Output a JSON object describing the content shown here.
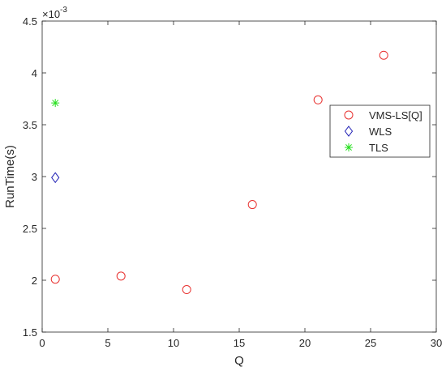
{
  "chart_data": {
    "type": "scatter",
    "title": "",
    "xlabel": "Q",
    "ylabel": "RunTime(s)",
    "xlim": [
      0,
      30
    ],
    "ylim": [
      1.5,
      4.5
    ],
    "x_ticks": [
      0,
      5,
      10,
      15,
      20,
      25,
      30
    ],
    "x_tick_labels": [
      "0",
      "5",
      "10",
      "15",
      "20",
      "25",
      "30"
    ],
    "y_ticks": [
      1.5,
      2,
      2.5,
      3,
      3.5,
      4,
      4.5
    ],
    "y_tick_labels": [
      "1.5",
      "2",
      "2.5",
      "3",
      "3.5",
      "4",
      "4.5"
    ],
    "y_exponent_base": "×10",
    "y_exponent_power": "-3",
    "grid": false,
    "legend_position": "right",
    "series": [
      {
        "name": "VMS-LS[Q]",
        "marker": "circle",
        "color": "#e8312f",
        "x": [
          1,
          6,
          11,
          16,
          21,
          26
        ],
        "y": [
          2.01,
          2.04,
          1.91,
          2.73,
          3.74,
          4.17
        ]
      },
      {
        "name": "WLS",
        "marker": "diamond",
        "color": "#1f1fb4",
        "x": [
          1
        ],
        "y": [
          2.99
        ]
      },
      {
        "name": "TLS",
        "marker": "asterisk",
        "color": "#27e01f",
        "x": [
          1
        ],
        "y": [
          3.71
        ]
      }
    ]
  }
}
